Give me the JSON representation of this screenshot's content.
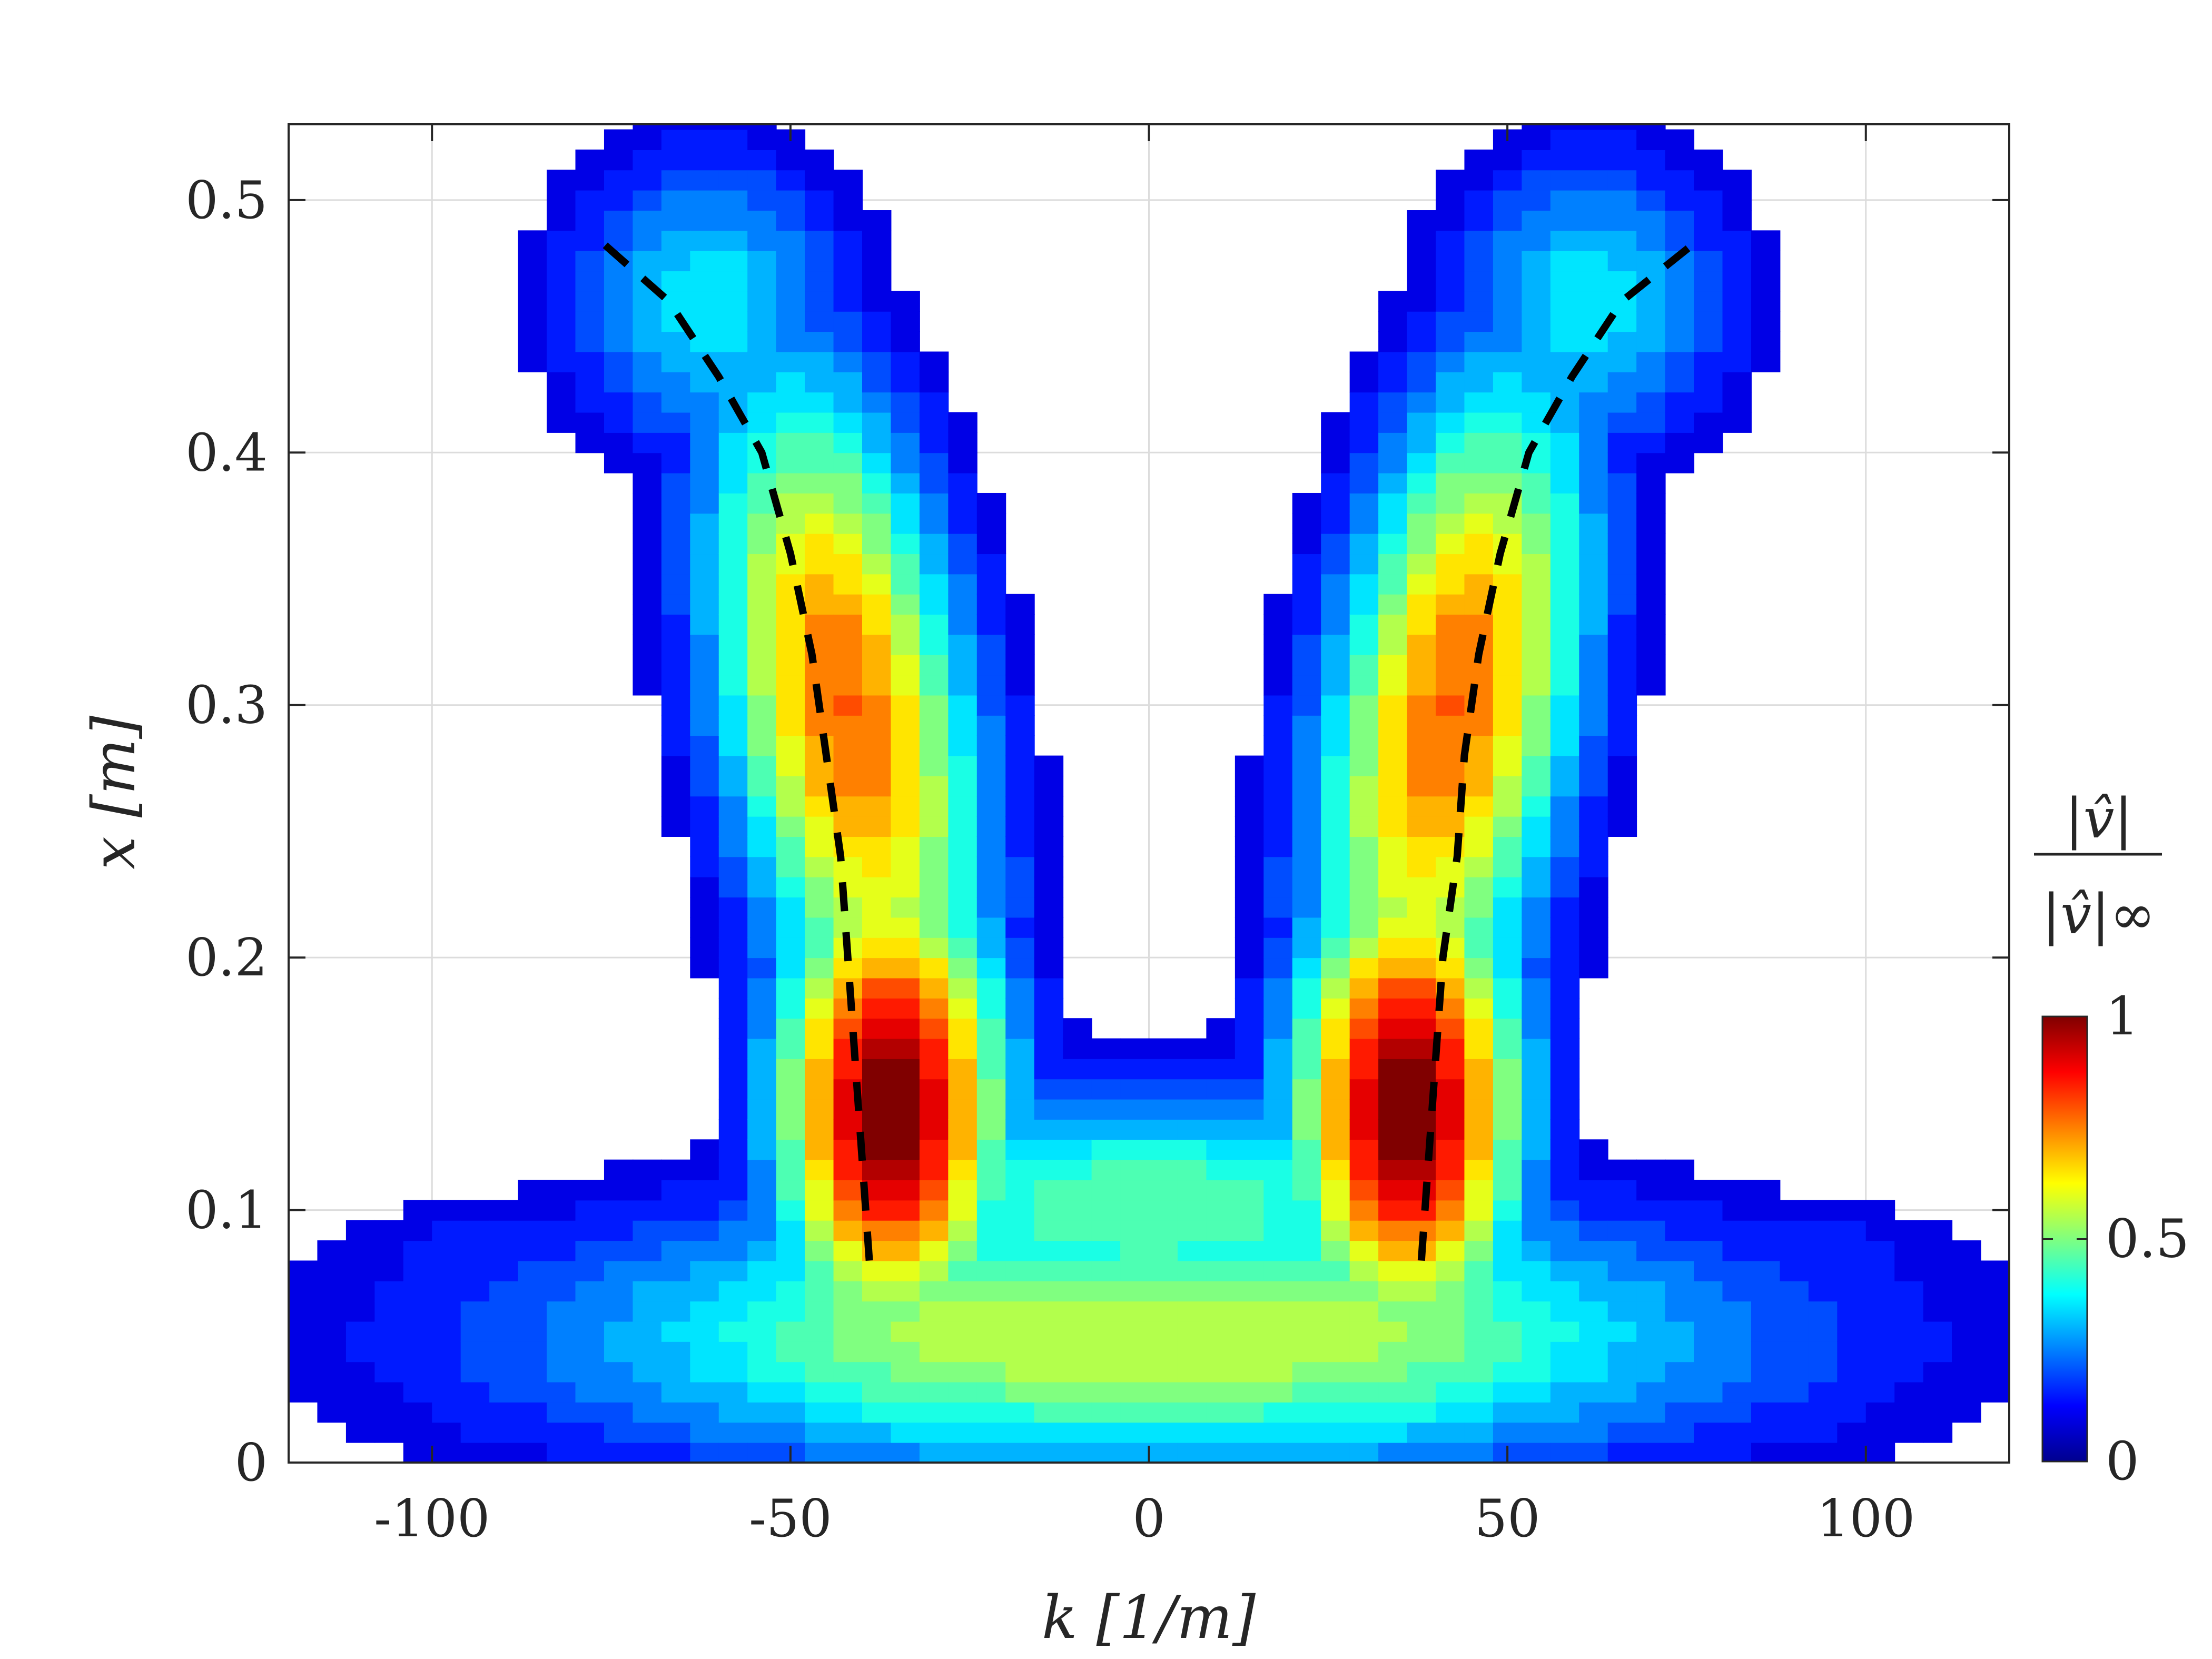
{
  "chart_data": {
    "type": "contour",
    "title": "",
    "xlabel": "k [1/m]",
    "ylabel": "x [m]",
    "xlim": [
      -120,
      120
    ],
    "ylim": [
      0,
      0.53
    ],
    "xticks": [
      -100,
      -50,
      0,
      50,
      100
    ],
    "xtick_labels": [
      "-100",
      "-50",
      "0",
      "50",
      "100"
    ],
    "yticks": [
      0,
      0.1,
      0.2,
      0.3,
      0.4,
      0.5
    ],
    "ytick_labels": [
      "0",
      "0.1",
      "0.2",
      "0.3",
      "0.4",
      "0.5"
    ],
    "grid": true,
    "colormap": "jet",
    "levels": 20,
    "colorbar": {
      "title_numerator": "|v̂|",
      "title_denominator": "|v̂|∞",
      "ticks": [
        0,
        0.5,
        1
      ],
      "tick_labels": [
        "0",
        "0.5",
        "1"
      ],
      "range": [
        0,
        1
      ]
    },
    "field_peaks": [
      {
        "k": -36,
        "x": 0.14,
        "value": 1.0
      },
      {
        "k": 36,
        "x": 0.14,
        "value": 1.0
      }
    ],
    "dashed_ridge_left": [
      {
        "k": -39,
        "x": 0.08
      },
      {
        "k": -40,
        "x": 0.12
      },
      {
        "k": -41,
        "x": 0.16
      },
      {
        "k": -42,
        "x": 0.2
      },
      {
        "k": -43,
        "x": 0.24
      },
      {
        "k": -45,
        "x": 0.28
      },
      {
        "k": -47,
        "x": 0.32
      },
      {
        "k": -50,
        "x": 0.36
      },
      {
        "k": -54,
        "x": 0.4
      },
      {
        "k": -60,
        "x": 0.43
      },
      {
        "k": -67,
        "x": 0.46
      },
      {
        "k": -77,
        "x": 0.485
      }
    ],
    "dashed_ridge_right": [
      {
        "k": 38,
        "x": 0.08
      },
      {
        "k": 39,
        "x": 0.12
      },
      {
        "k": 40,
        "x": 0.16
      },
      {
        "k": 41,
        "x": 0.2
      },
      {
        "k": 43,
        "x": 0.24
      },
      {
        "k": 44,
        "x": 0.28
      },
      {
        "k": 46,
        "x": 0.32
      },
      {
        "k": 49,
        "x": 0.36
      },
      {
        "k": 53,
        "x": 0.4
      },
      {
        "k": 59,
        "x": 0.43
      },
      {
        "k": 66,
        "x": 0.46
      },
      {
        "k": 77,
        "x": 0.485
      }
    ]
  }
}
